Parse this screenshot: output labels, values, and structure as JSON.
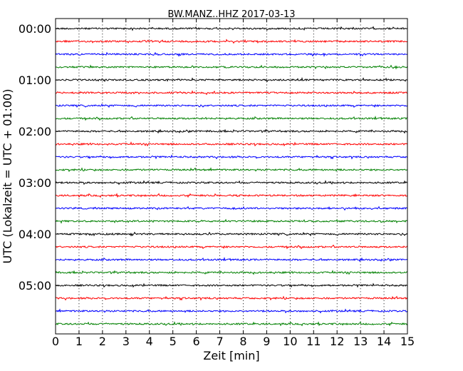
{
  "chart_data": {
    "type": "line",
    "title": "BW.MANZ..HHZ 2017-03-13",
    "xlabel": "Zeit  [min]",
    "ylabel": "UTC (Lokalzeit = UTC + 01:00)",
    "xlim": [
      0,
      15
    ],
    "x_ticks": [
      0,
      1,
      2,
      3,
      4,
      5,
      6,
      7,
      8,
      9,
      10,
      11,
      12,
      13,
      14,
      15
    ],
    "x_tick_labels": [
      "0",
      "1",
      "2",
      "3",
      "4",
      "5",
      "6",
      "7",
      "8",
      "9",
      "10",
      "11",
      "12",
      "13",
      "14",
      "15"
    ],
    "y_ticks": [
      "00:00",
      "01:00",
      "02:00",
      "03:00",
      "04:00",
      "05:00"
    ],
    "grid_x": true,
    "grid_style": "dotted",
    "trace_start_minutes": [
      0,
      15,
      30,
      45,
      60,
      75,
      90,
      105,
      120,
      135,
      150,
      165,
      180,
      195,
      210,
      225,
      240,
      255,
      270,
      285,
      300,
      315,
      330,
      345
    ],
    "trace_colors": [
      "#000000",
      "#ff0000",
      "#0000ff",
      "#008000"
    ]
  }
}
